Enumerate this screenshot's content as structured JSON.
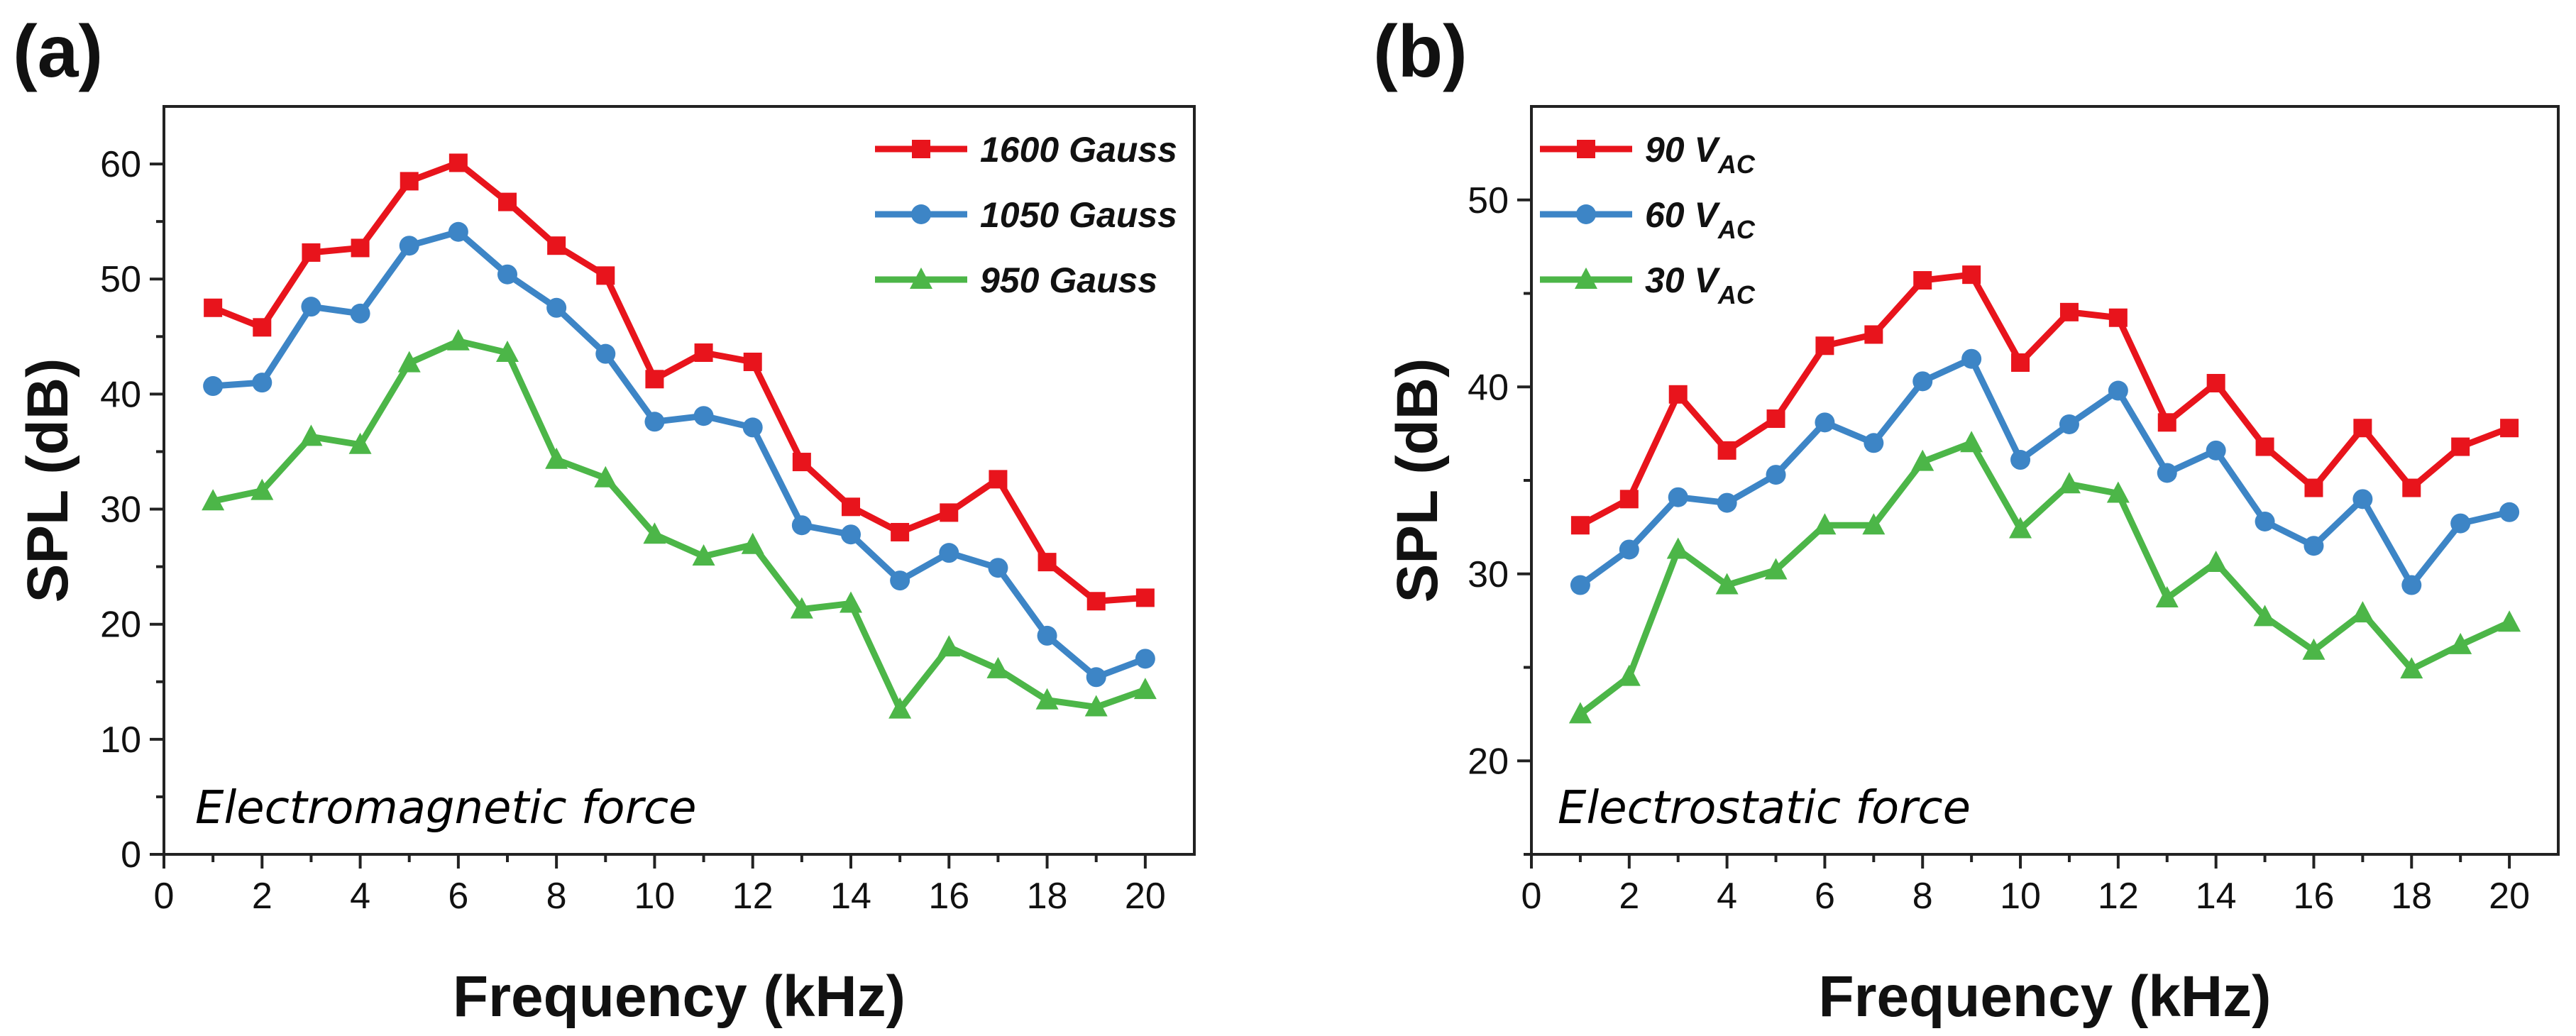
{
  "chart_data": [
    {
      "panel_label": "(a)",
      "type": "line",
      "xlabel": "Frequency (kHz)",
      "ylabel": "SPL (dB)",
      "xlim": [
        0,
        21
      ],
      "ylim": [
        0,
        65
      ],
      "xticks": [
        0,
        2,
        4,
        6,
        8,
        10,
        12,
        14,
        16,
        18,
        20
      ],
      "yticks": [
        0,
        10,
        20,
        30,
        40,
        50,
        60
      ],
      "annotation": "Electromagnetic force",
      "legend_position": "top-right",
      "x": [
        1,
        2,
        3,
        4,
        5,
        6,
        7,
        8,
        9,
        10,
        11,
        12,
        13,
        14,
        15,
        16,
        17,
        18,
        19,
        20
      ],
      "series": [
        {
          "name": "1600 Gauss",
          "label": "1600 Gauss",
          "label_sub": "",
          "color": "#e8141c",
          "marker": "square",
          "values": [
            47.5,
            45.8,
            52.3,
            52.7,
            58.5,
            60.1,
            56.7,
            52.9,
            50.3,
            41.3,
            43.6,
            42.8,
            34.1,
            30.2,
            28.0,
            29.7,
            32.6,
            25.4,
            22.0,
            22.3
          ]
        },
        {
          "name": "1050 Gauss",
          "label": "1050 Gauss",
          "label_sub": "",
          "color": "#3d85c6",
          "marker": "circle",
          "values": [
            40.7,
            41.0,
            47.6,
            47.0,
            52.9,
            54.1,
            50.4,
            47.5,
            43.5,
            37.6,
            38.1,
            37.1,
            28.6,
            27.8,
            23.8,
            26.2,
            24.9,
            19.0,
            15.4,
            17.0
          ]
        },
        {
          "name": "950 Gauss",
          "label": "950 Gauss",
          "label_sub": "",
          "color": "#4cb648",
          "marker": "triangle",
          "values": [
            30.7,
            31.6,
            36.3,
            35.6,
            42.7,
            44.6,
            43.6,
            34.3,
            32.7,
            27.8,
            25.9,
            26.9,
            21.3,
            21.8,
            12.6,
            18.0,
            16.1,
            13.4,
            12.8,
            14.3
          ]
        }
      ]
    },
    {
      "panel_label": "(b)",
      "type": "line",
      "xlabel": "Frequency (kHz)",
      "ylabel": "SPL (dB)",
      "xlim": [
        0,
        21
      ],
      "ylim": [
        15,
        55
      ],
      "xticks": [
        0,
        2,
        4,
        6,
        8,
        10,
        12,
        14,
        16,
        18,
        20
      ],
      "yticks": [
        20,
        30,
        40,
        50
      ],
      "annotation": "Electrostatic force",
      "legend_position": "top-left",
      "x": [
        1,
        2,
        3,
        4,
        5,
        6,
        7,
        8,
        9,
        10,
        11,
        12,
        13,
        14,
        15,
        16,
        17,
        18,
        19,
        20
      ],
      "series": [
        {
          "name": "90 V_AC",
          "label": "90 V",
          "label_sub": "AC",
          "color": "#e8141c",
          "marker": "square",
          "values": [
            32.6,
            34.0,
            39.6,
            36.6,
            38.3,
            42.2,
            42.8,
            45.7,
            46.0,
            41.3,
            44.0,
            43.7,
            38.1,
            40.2,
            36.8,
            34.6,
            37.8,
            34.6,
            36.8,
            37.8
          ]
        },
        {
          "name": "60 V_AC",
          "label": "60 V",
          "label_sub": "AC",
          "color": "#3d85c6",
          "marker": "circle",
          "values": [
            29.4,
            31.3,
            34.1,
            33.8,
            35.3,
            38.1,
            37.0,
            40.3,
            41.5,
            36.1,
            38.0,
            39.8,
            35.4,
            36.6,
            32.8,
            31.5,
            34.0,
            29.4,
            32.7,
            33.3
          ]
        },
        {
          "name": "30 V_AC",
          "label": "30 V",
          "label_sub": "AC",
          "color": "#4cb648",
          "marker": "triangle",
          "values": [
            22.5,
            24.5,
            31.3,
            29.4,
            30.2,
            32.6,
            32.6,
            36.0,
            37.0,
            32.4,
            34.8,
            34.3,
            28.7,
            30.6,
            27.7,
            25.9,
            27.9,
            24.9,
            26.2,
            27.4
          ]
        }
      ]
    }
  ]
}
